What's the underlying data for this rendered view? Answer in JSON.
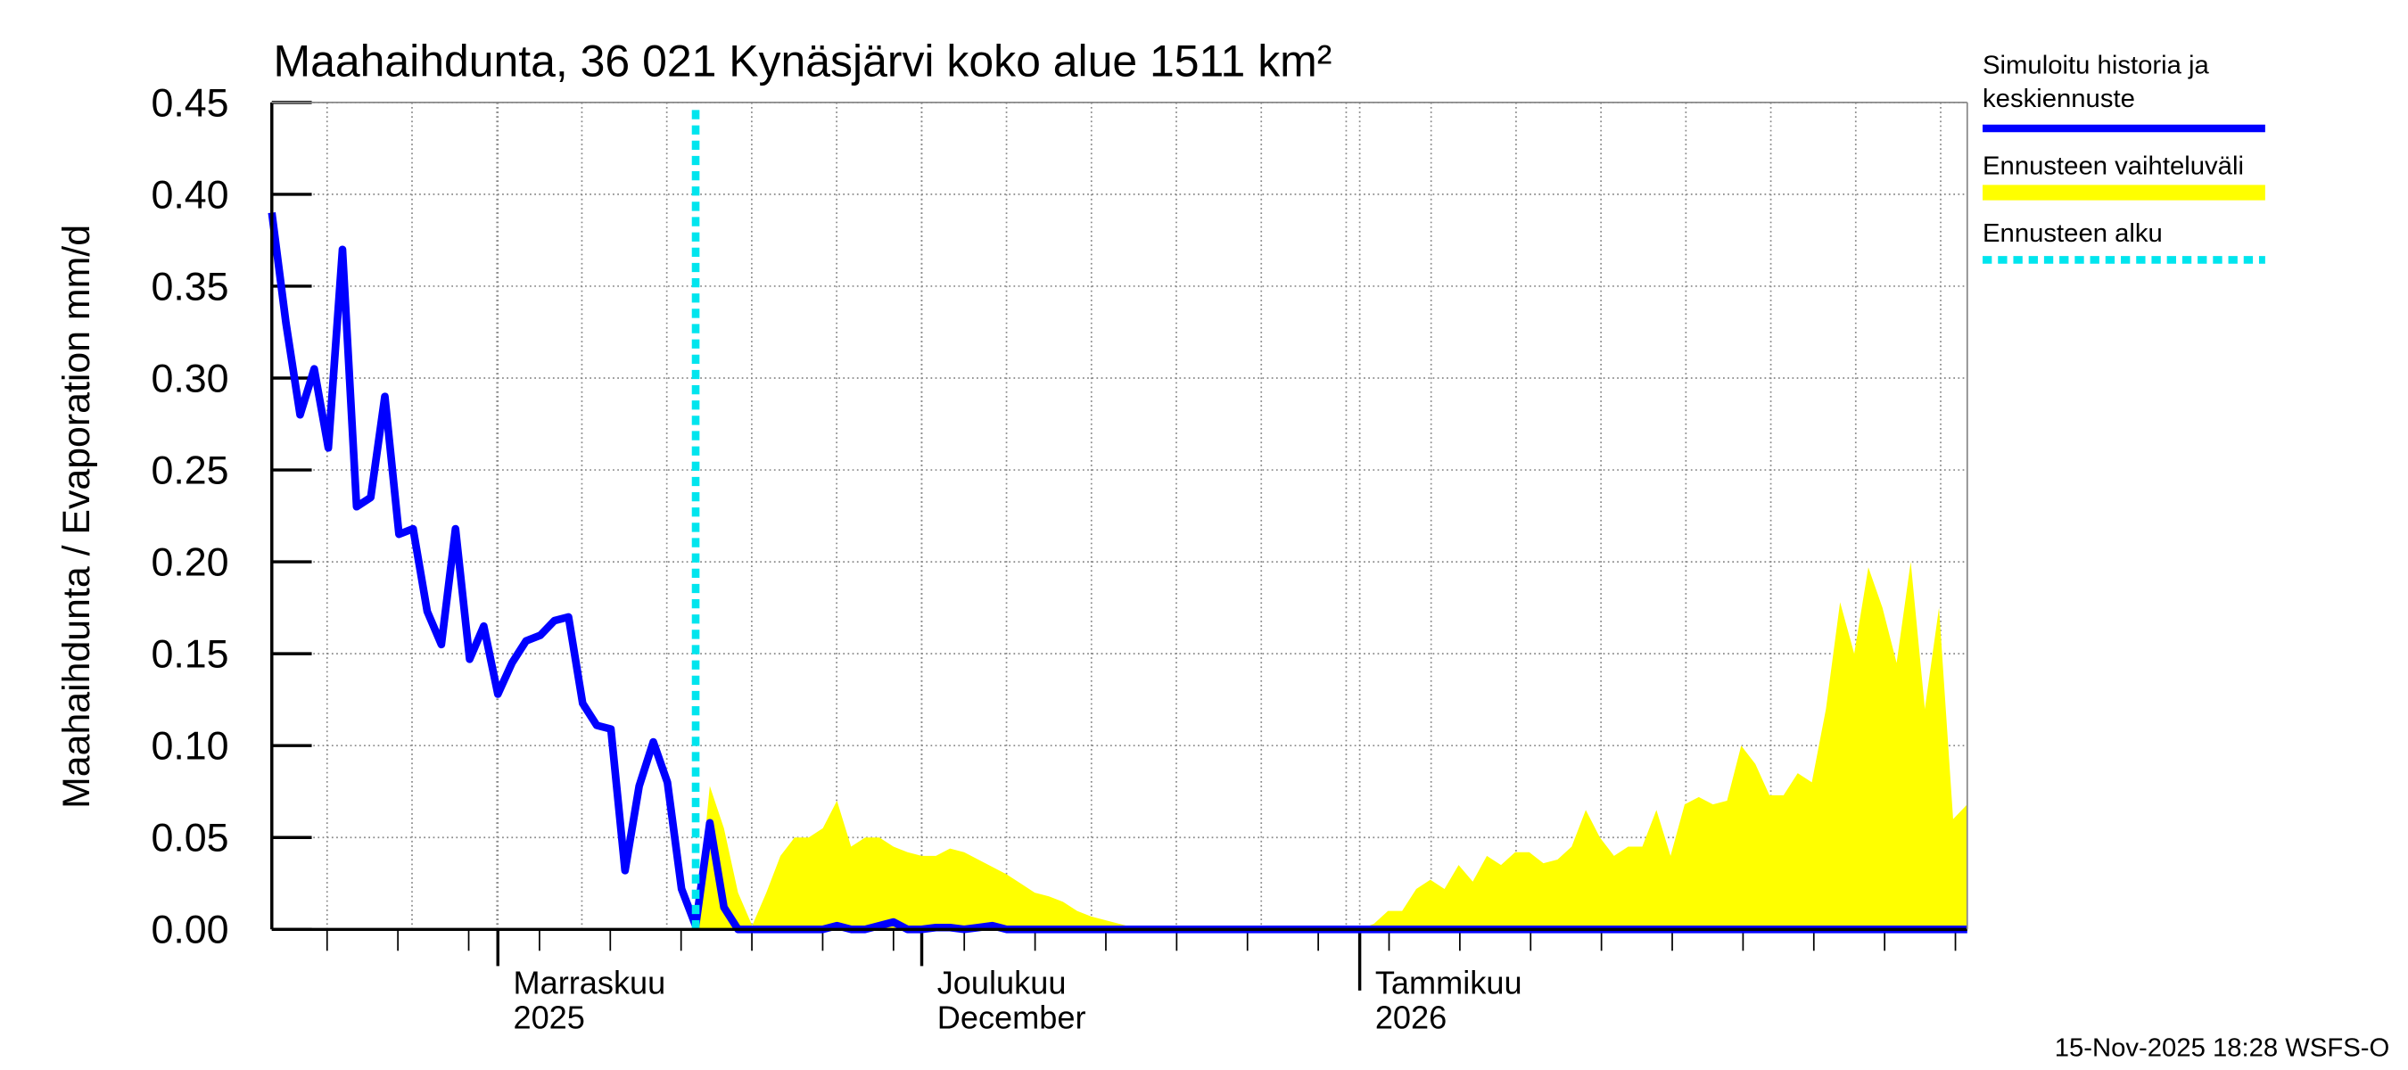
{
  "chart_data": {
    "type": "line",
    "title": "Maahaihdunta, 36 021 Kynäsjärvi koko alue 1511 km²",
    "y_label": "Maahaihdunta / Evaporation   mm/d",
    "footer": "15-Nov-2025 18:28 WSFS-O",
    "xlim": [
      "2025-10-16",
      "2026-02-13"
    ],
    "ylim": [
      0,
      0.45
    ],
    "yticks": [
      {
        "value": 0,
        "label": "0.00"
      },
      0.05,
      {
        "value": 0.1,
        "label": "0.10"
      },
      0.15,
      {
        "value": 0.2,
        "label": "0.20"
      },
      0.25,
      {
        "value": 0.3,
        "label": "0.30"
      },
      0.35,
      {
        "value": 0.4,
        "label": "0.40"
      },
      0.45
    ],
    "xticks": [
      {
        "value": "2025-11-01",
        "label": [
          "Marraskuu",
          "2025"
        ]
      },
      {
        "value": "2025-12-01",
        "label": [
          "Joulukuu",
          "December"
        ]
      },
      {
        "value": "2026-01-01",
        "label": [
          "Tammikuu",
          "2026"
        ]
      }
    ],
    "grid": true,
    "x": [
      "2025-10-16",
      "2025-10-17",
      "2025-10-18",
      "2025-10-19",
      "2025-10-20",
      "2025-10-21",
      "2025-10-22",
      "2025-10-23",
      "2025-10-24",
      "2025-10-25",
      "2025-10-26",
      "2025-10-27",
      "2025-10-28",
      "2025-10-29",
      "2025-10-30",
      "2025-10-31",
      "2025-11-01",
      "2025-11-02",
      "2025-11-03",
      "2025-11-04",
      "2025-11-05",
      "2025-11-06",
      "2025-11-07",
      "2025-11-08",
      "2025-11-09",
      "2025-11-10",
      "2025-11-11",
      "2025-11-12",
      "2025-11-13",
      "2025-11-14",
      "2025-11-15",
      "2025-11-16",
      "2025-11-17",
      "2025-11-18",
      "2025-11-19",
      "2025-11-20",
      "2025-11-21",
      "2025-11-22",
      "2025-11-23",
      "2025-11-24",
      "2025-11-25",
      "2025-11-26",
      "2025-11-27",
      "2025-11-28",
      "2025-11-29",
      "2025-11-30",
      "2025-12-01",
      "2025-12-02",
      "2025-12-03",
      "2025-12-04",
      "2025-12-05",
      "2025-12-06",
      "2025-12-07",
      "2025-12-08",
      "2025-12-09",
      "2025-12-10",
      "2025-12-11",
      "2025-12-12",
      "2025-12-13",
      "2025-12-14",
      "2025-12-15",
      "2025-12-16",
      "2025-12-17",
      "2025-12-18",
      "2025-12-19",
      "2025-12-20",
      "2025-12-21",
      "2025-12-22",
      "2025-12-23",
      "2025-12-24",
      "2025-12-25",
      "2025-12-26",
      "2025-12-27",
      "2025-12-28",
      "2025-12-29",
      "2025-12-30",
      "2025-12-31",
      "2026-01-01",
      "2026-01-02",
      "2026-01-03",
      "2026-01-04",
      "2026-01-05",
      "2026-01-06",
      "2026-01-07",
      "2026-01-08",
      "2026-01-09",
      "2026-01-10",
      "2026-01-11",
      "2026-01-12",
      "2026-01-13",
      "2026-01-14",
      "2026-01-15",
      "2026-01-16",
      "2026-01-17",
      "2026-01-18",
      "2026-01-19",
      "2026-01-20",
      "2026-01-21",
      "2026-01-22",
      "2026-01-23",
      "2026-01-24",
      "2026-01-25",
      "2026-01-26",
      "2026-01-27",
      "2026-01-28",
      "2026-01-29",
      "2026-01-30",
      "2026-01-31",
      "2026-02-01",
      "2026-02-02",
      "2026-02-03",
      "2026-02-04",
      "2026-02-05",
      "2026-02-06",
      "2026-02-07",
      "2026-02-08",
      "2026-02-09",
      "2026-02-10",
      "2026-02-11",
      "2026-02-12",
      "2026-02-13"
    ],
    "series": [
      {
        "name": "Ennusteen vaihteluväli",
        "kind": "area",
        "color": "#ffff00",
        "values": [
          null,
          null,
          null,
          null,
          null,
          null,
          null,
          null,
          null,
          null,
          null,
          null,
          null,
          null,
          null,
          null,
          null,
          null,
          null,
          null,
          null,
          null,
          null,
          null,
          null,
          null,
          null,
          null,
          null,
          null,
          0,
          0.078,
          0.055,
          0.02,
          0.002,
          0.02,
          0.04,
          0.05,
          0.05,
          0.055,
          0.07,
          0.045,
          0.05,
          0.05,
          0.045,
          0.042,
          0.04,
          0.04,
          0.044,
          0.042,
          0.038,
          0.034,
          0.03,
          0.025,
          0.02,
          0.018,
          0.015,
          0.01,
          0.007,
          0.005,
          0.003,
          0.001,
          0,
          0,
          0,
          0,
          0,
          0,
          0,
          0,
          0,
          0,
          0,
          0,
          0,
          0,
          0,
          0,
          0.003,
          0.01,
          0.01,
          0.022,
          0.027,
          0.022,
          0.035,
          0.026,
          0.04,
          0.035,
          0.042,
          0.042,
          0.036,
          0.038,
          0.045,
          0.065,
          0.05,
          0.04,
          0.045,
          0.045,
          0.065,
          0.04,
          0.068,
          0.072,
          0.068,
          0.07,
          0.1,
          0.09,
          0.073,
          0.073,
          0.085,
          0.08,
          0.12,
          0.178,
          0.15,
          0.197,
          0.175,
          0.145,
          0.2,
          0.12,
          0.175,
          0.06,
          0.068
        ]
      },
      {
        "name": "Simuloitu historia ja keskiennuste",
        "kind": "line",
        "color": "#0000ff",
        "values": [
          0.39,
          0.33,
          0.28,
          0.305,
          0.262,
          0.37,
          0.23,
          0.235,
          0.29,
          0.215,
          0.218,
          0.173,
          0.155,
          0.218,
          0.147,
          0.165,
          0.128,
          0.145,
          0.157,
          0.16,
          0.168,
          0.17,
          0.123,
          0.111,
          0.109,
          0.032,
          0.078,
          0.102,
          0.08,
          0.022,
          0.002,
          0.058,
          0.012,
          0,
          0,
          0,
          0,
          0,
          0,
          0,
          0.002,
          0,
          0,
          0.002,
          0.004,
          0,
          0,
          0.001,
          0.001,
          0,
          0.001,
          0.002,
          0,
          0,
          0,
          0,
          0,
          0,
          0,
          0,
          0,
          0,
          0,
          0,
          0,
          0,
          0,
          0,
          0,
          0,
          0,
          0,
          0,
          0,
          0,
          0,
          0,
          0,
          0,
          0,
          0,
          0,
          0,
          0,
          0,
          0,
          0,
          0,
          0,
          0,
          0,
          0,
          0,
          0,
          0,
          0,
          0,
          0,
          0,
          0,
          0,
          0,
          0,
          0,
          0,
          0,
          0,
          0,
          0,
          0,
          0,
          0,
          0,
          0,
          0,
          0,
          0,
          0,
          0,
          0,
          0
        ]
      }
    ],
    "forecast_start": {
      "name": "Ennusteen alku",
      "x": "2025-11-15",
      "color": "#00e5ee"
    }
  }
}
